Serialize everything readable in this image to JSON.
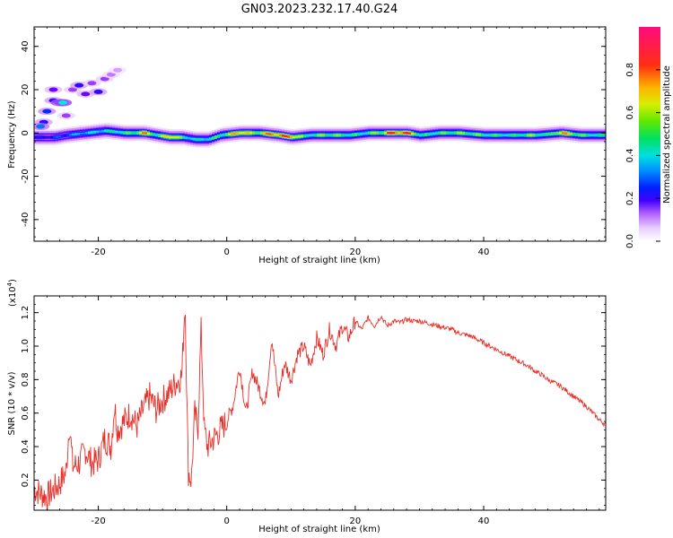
{
  "figure": {
    "title": "GN03.2023.232.17.40.G24"
  },
  "colors": {
    "snr_line": "#e8302a",
    "background_low": "#ffffff",
    "colormap": [
      "#ffffff",
      "#e8d0ff",
      "#c060ff",
      "#7000ff",
      "#0010ff",
      "#0090ff",
      "#00e8e8",
      "#00ee60",
      "#a0ee00",
      "#eeee00",
      "#ff9000",
      "#ff2020",
      "#ff007f"
    ]
  },
  "chart_data": [
    {
      "type": "heatmap",
      "xlabel": "Height of straight line (km)",
      "ylabel": "Frequency (Hz)",
      "xlim": [
        -30,
        59
      ],
      "ylim": [
        -50,
        49
      ],
      "x_ticks": [
        -20,
        0,
        20,
        40
      ],
      "y_ticks": [
        -40,
        -20,
        0,
        20,
        40
      ],
      "grid": false,
      "main_band": {
        "center_frequency_hz": [
          [
            -29,
            -2
          ],
          [
            -27,
            -2
          ],
          [
            -25,
            -1
          ],
          [
            -22,
            0
          ],
          [
            -19,
            1
          ],
          [
            -16,
            0
          ],
          [
            -13,
            0
          ],
          [
            -11,
            -1
          ],
          [
            -9,
            -2
          ],
          [
            -7,
            -2
          ],
          [
            -5,
            -3
          ],
          [
            -3,
            -3
          ],
          [
            -1,
            -1
          ],
          [
            2,
            0
          ],
          [
            5,
            0
          ],
          [
            8,
            -1
          ],
          [
            10,
            -2
          ],
          [
            13,
            -1
          ],
          [
            16,
            -1
          ],
          [
            19,
            -1
          ],
          [
            22,
            0
          ],
          [
            25,
            0
          ],
          [
            28,
            0
          ],
          [
            30,
            -1
          ],
          [
            33,
            0
          ],
          [
            36,
            0
          ],
          [
            40,
            -1
          ],
          [
            44,
            -1
          ],
          [
            48,
            -1
          ],
          [
            52,
            0
          ],
          [
            55,
            -1
          ],
          [
            58,
            -1
          ]
        ],
        "peak_amplitude": [
          [
            -29,
            0.35
          ],
          [
            -26,
            0.4
          ],
          [
            -23,
            0.5
          ],
          [
            -20,
            0.55
          ],
          [
            -18,
            0.6
          ],
          [
            -15,
            0.65
          ],
          [
            -13,
            0.9
          ],
          [
            -11,
            0.6
          ],
          [
            -9,
            0.95
          ],
          [
            -7,
            0.6
          ],
          [
            -5,
            0.55
          ],
          [
            -3,
            0.6
          ],
          [
            -1,
            0.65
          ],
          [
            2,
            0.95
          ],
          [
            4,
            0.7
          ],
          [
            7,
            0.95
          ],
          [
            10,
            0.95
          ],
          [
            12,
            0.6
          ],
          [
            15,
            0.7
          ],
          [
            18,
            0.65
          ],
          [
            21,
            0.6
          ],
          [
            24,
            0.75
          ],
          [
            25,
            0.98
          ],
          [
            28,
            0.98
          ],
          [
            30,
            0.6
          ],
          [
            33,
            0.65
          ],
          [
            36,
            0.7
          ],
          [
            40,
            0.65
          ],
          [
            44,
            0.6
          ],
          [
            47,
            0.7
          ],
          [
            50,
            0.6
          ],
          [
            52,
            0.9
          ],
          [
            55,
            0.65
          ],
          [
            58,
            0.6
          ]
        ]
      },
      "scatter_blobs": [
        {
          "x": -28,
          "y": 10,
          "amp": 0.35
        },
        {
          "x": -27,
          "y": 15,
          "amp": 0.3
        },
        {
          "x": -26,
          "y": 14,
          "amp": 0.45
        },
        {
          "x": -25.5,
          "y": 14,
          "amp": 0.5
        },
        {
          "x": -27,
          "y": 20,
          "amp": 0.25
        },
        {
          "x": -24,
          "y": 20,
          "amp": 0.2
        },
        {
          "x": -23,
          "y": 22,
          "amp": 0.3
        },
        {
          "x": -21,
          "y": 23,
          "amp": 0.2
        },
        {
          "x": -22,
          "y": 18,
          "amp": 0.25
        },
        {
          "x": -20,
          "y": 19,
          "amp": 0.3
        },
        {
          "x": -19,
          "y": 25,
          "amp": 0.2
        },
        {
          "x": -18,
          "y": 27,
          "amp": 0.15
        },
        {
          "x": -17,
          "y": 29,
          "amp": 0.12
        },
        {
          "x": -28.5,
          "y": 5,
          "amp": 0.3
        },
        {
          "x": -25,
          "y": 8,
          "amp": 0.2
        },
        {
          "x": -29,
          "y": 3,
          "amp": 0.4
        }
      ]
    },
    {
      "type": "line",
      "xlabel": "Height of straight line (km)",
      "ylabel": "SNR (10 * v/v)",
      "y_multiplier_label": "(x10",
      "y_multiplier_exponent": "4",
      "y_multiplier_close": ")",
      "xlim": [
        -30,
        59
      ],
      "ylim": [
        0.02,
        1.3
      ],
      "x_ticks": [
        -20,
        0,
        20,
        40
      ],
      "y_ticks": [
        0.2,
        0.4,
        0.6,
        0.8,
        1.0,
        1.2
      ],
      "grid": false,
      "series": [
        {
          "x": [
            -30,
            -29,
            -28,
            -27,
            -26,
            -25,
            -24.5,
            -24,
            -23,
            -22,
            -21,
            -20,
            -19,
            -18,
            -17.5,
            -17,
            -16,
            -15,
            -14,
            -13,
            -12,
            -11,
            -10,
            -9,
            -8,
            -7,
            -6.5,
            -6,
            -5.5,
            -5,
            -4.5,
            -4,
            -3.5,
            -3,
            -2,
            -1,
            0,
            1,
            2,
            3,
            4,
            5,
            6,
            7,
            8,
            9,
            10,
            11,
            12,
            13,
            14,
            15,
            16,
            17,
            18,
            19,
            20,
            21,
            22,
            23,
            24,
            25,
            26,
            27,
            28,
            29,
            30,
            31,
            32,
            33,
            34,
            35,
            36,
            37,
            38,
            39,
            40,
            41,
            42,
            43,
            44,
            45,
            46,
            47,
            48,
            49,
            50,
            51,
            52,
            53,
            54,
            55,
            56,
            57,
            58,
            59
          ],
          "y": [
            0.15,
            0.12,
            0.1,
            0.14,
            0.18,
            0.25,
            0.55,
            0.28,
            0.3,
            0.38,
            0.3,
            0.32,
            0.45,
            0.4,
            0.65,
            0.5,
            0.55,
            0.6,
            0.52,
            0.62,
            0.7,
            0.62,
            0.68,
            0.72,
            0.78,
            0.82,
            1.28,
            0.25,
            0.2,
            0.6,
            0.5,
            1.1,
            0.5,
            0.4,
            0.45,
            0.5,
            0.55,
            0.65,
            0.88,
            0.6,
            0.85,
            0.75,
            0.65,
            1.05,
            0.7,
            0.9,
            0.8,
            0.95,
            1.0,
            0.88,
            1.05,
            0.95,
            1.1,
            1.0,
            1.12,
            1.05,
            1.15,
            1.1,
            1.17,
            1.12,
            1.18,
            1.12,
            1.15,
            1.14,
            1.16,
            1.15,
            1.15,
            1.14,
            1.13,
            1.12,
            1.11,
            1.1,
            1.08,
            1.07,
            1.06,
            1.04,
            1.02,
            1.0,
            0.98,
            0.96,
            0.94,
            0.92,
            0.9,
            0.88,
            0.85,
            0.83,
            0.8,
            0.78,
            0.76,
            0.73,
            0.7,
            0.67,
            0.64,
            0.6,
            0.56,
            0.53
          ]
        }
      ]
    },
    {
      "type": "colorbar",
      "label": "Normalized spectral amplitude",
      "ylim": [
        0.0,
        1.0
      ],
      "ticks": [
        0.0,
        0.2,
        0.4,
        0.6,
        0.8
      ]
    }
  ]
}
